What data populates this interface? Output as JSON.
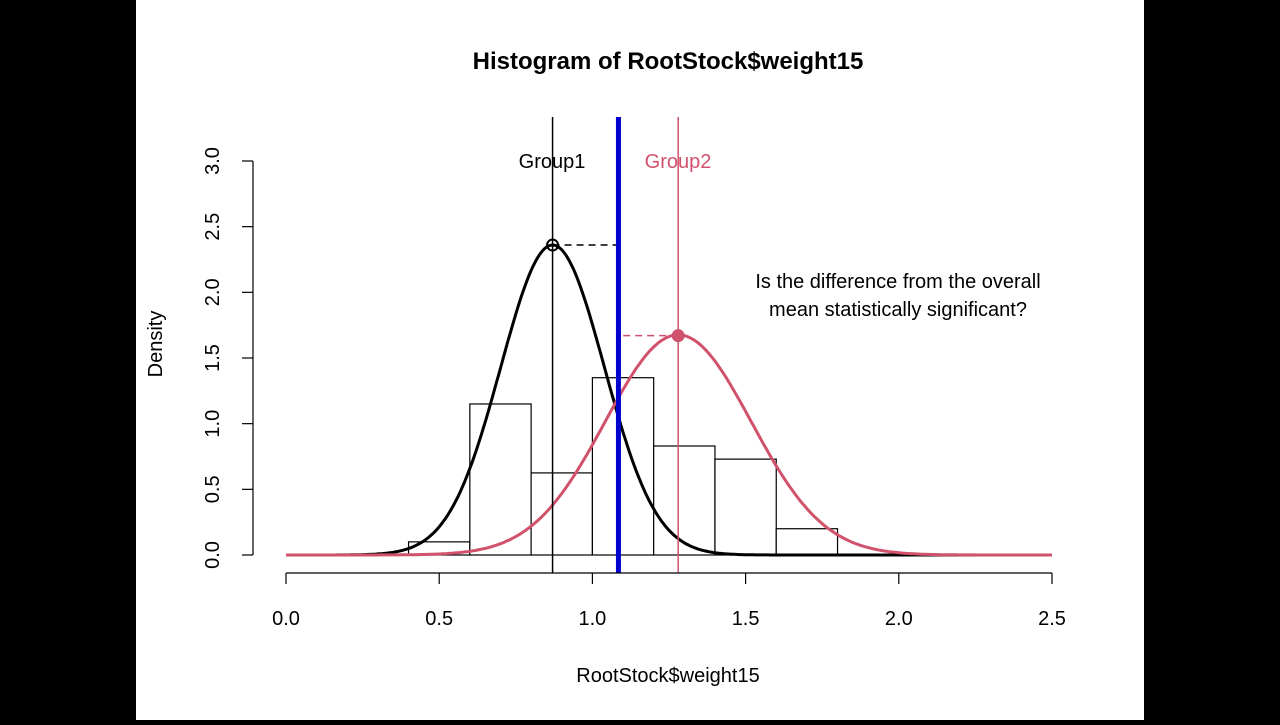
{
  "chart_data": {
    "type": "histogram",
    "title": "Histogram of RootStock$weight15",
    "xlabel": "RootStock$weight15",
    "ylabel": "Density",
    "xlim": [
      0.0,
      2.5
    ],
    "ylim": [
      0.0,
      3.0
    ],
    "x_ticks": [
      "0.0",
      "0.5",
      "1.0",
      "1.5",
      "2.0",
      "2.5"
    ],
    "y_ticks": [
      "0.0",
      "0.5",
      "1.0",
      "1.5",
      "2.0",
      "2.5",
      "3.0"
    ],
    "bins": [
      {
        "x0": 0.4,
        "x1": 0.6,
        "density": 0.1
      },
      {
        "x0": 0.6,
        "x1": 0.8,
        "density": 1.15
      },
      {
        "x0": 0.8,
        "x1": 1.0,
        "density": 0.625
      },
      {
        "x0": 1.0,
        "x1": 1.2,
        "density": 1.35
      },
      {
        "x0": 1.2,
        "x1": 1.4,
        "density": 0.83
      },
      {
        "x0": 1.4,
        "x1": 1.6,
        "density": 0.73
      },
      {
        "x0": 1.6,
        "x1": 1.8,
        "density": 0.2
      }
    ],
    "series": [
      {
        "name": "Group1",
        "type": "normal-curve",
        "mean": 0.87,
        "sd": 0.169,
        "peak": 2.36,
        "color": "#000000"
      },
      {
        "name": "Group2",
        "type": "normal-curve",
        "mean": 1.28,
        "sd": 0.238,
        "peak": 1.67,
        "color": "#D0526C"
      }
    ],
    "overall_mean": {
      "x": 1.085,
      "color": "#0000D0"
    },
    "group_labels": [
      {
        "text": "Group1",
        "color": "#000000"
      },
      {
        "text": "Group2",
        "color": "#D0526C"
      }
    ],
    "annotation": [
      "Is the difference from the overall",
      "mean statistically significant?"
    ],
    "colors": {
      "group1": "#000000",
      "group2": "#D0526C",
      "overall_mean": "#0000D0",
      "letterbox": "#000000",
      "plot_bg": "#FFFFFF"
    }
  }
}
